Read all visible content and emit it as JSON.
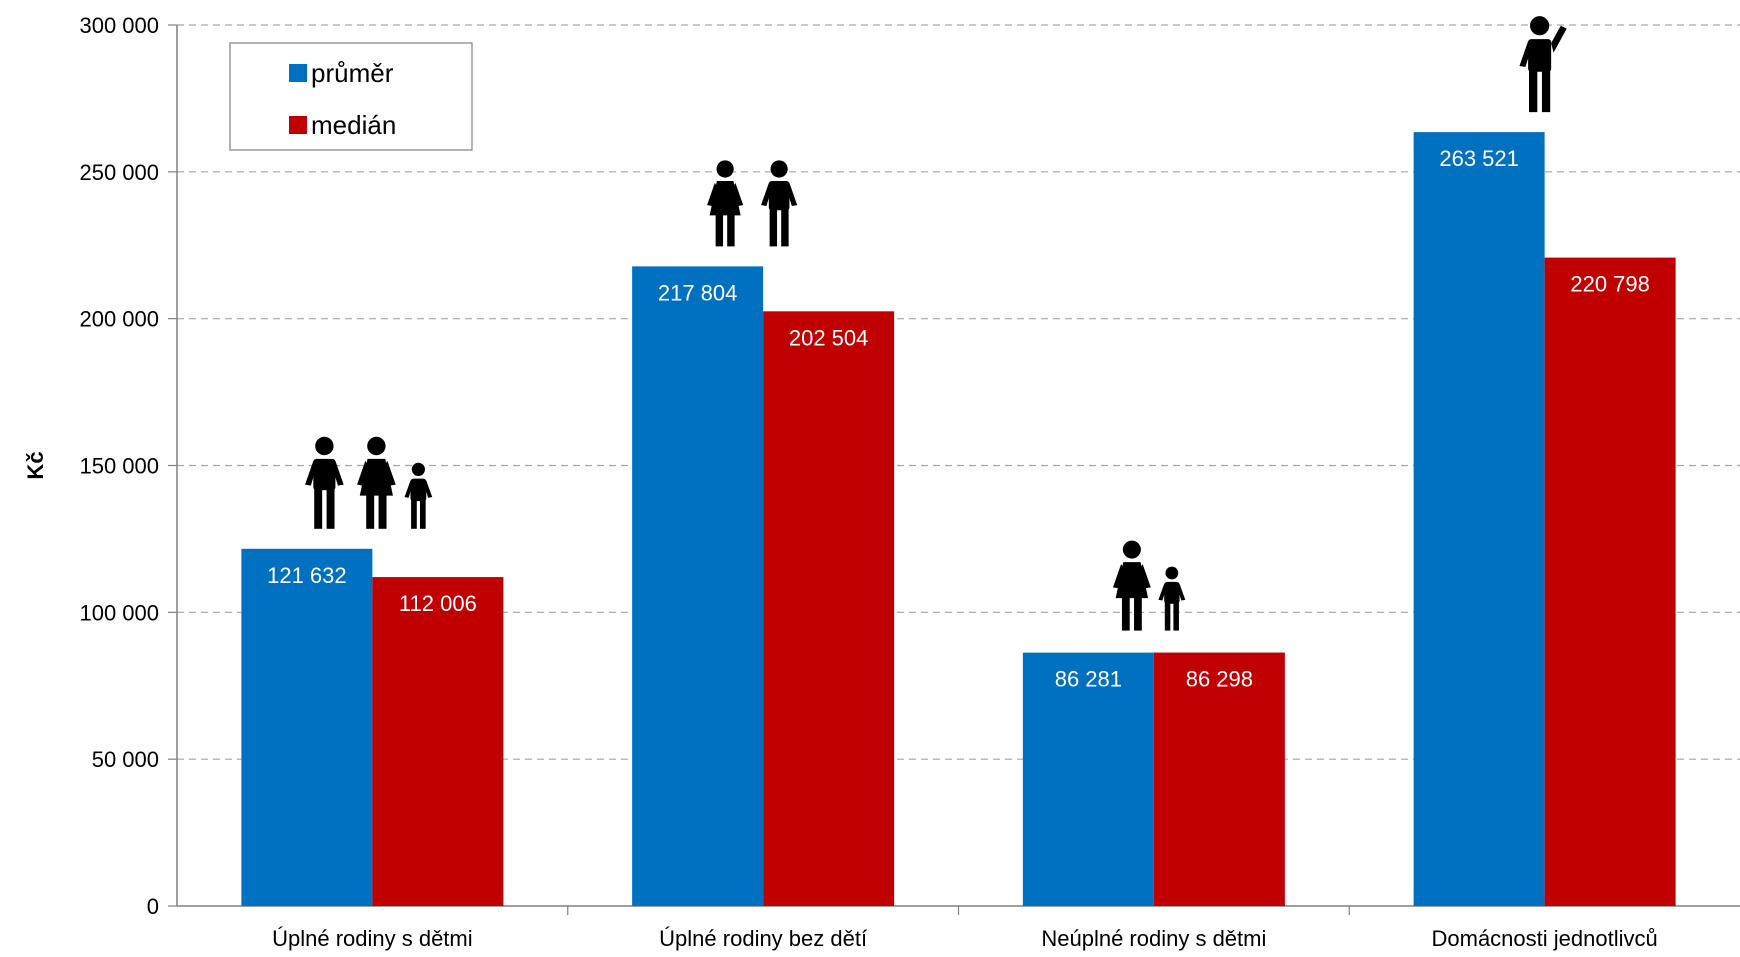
{
  "chart_data": {
    "type": "bar",
    "title": "",
    "xlabel": "",
    "ylabel": "Kč",
    "ylim": [
      0,
      300000
    ],
    "yticks": [
      0,
      50000,
      100000,
      150000,
      200000,
      250000,
      300000
    ],
    "ytick_labels": [
      "0",
      "50 000",
      "100 000",
      "150 000",
      "200 000",
      "250 000",
      "300 000"
    ],
    "grid": true,
    "legend_position": "top-left",
    "categories": [
      "Úplné rodiny s dětmi",
      "Úplné rodiny bez dětí",
      "Neúplné rodiny s dětmi",
      "Domácnosti jednotlivců"
    ],
    "category_icons": [
      "family-with-child-icon",
      "couple-icon",
      "parent-with-child-icon",
      "single-person-icon"
    ],
    "series": [
      {
        "name": "průměr",
        "color": "#0070c0",
        "values": [
          121632,
          217804,
          86281,
          263521
        ],
        "labels": [
          "121 632",
          "217 804",
          "86 281",
          "263 521"
        ]
      },
      {
        "name": "medián",
        "color": "#c00000",
        "values": [
          112006,
          202504,
          86298,
          220798
        ],
        "labels": [
          "112 006",
          "202 504",
          "86 298",
          "220 798"
        ]
      }
    ]
  }
}
